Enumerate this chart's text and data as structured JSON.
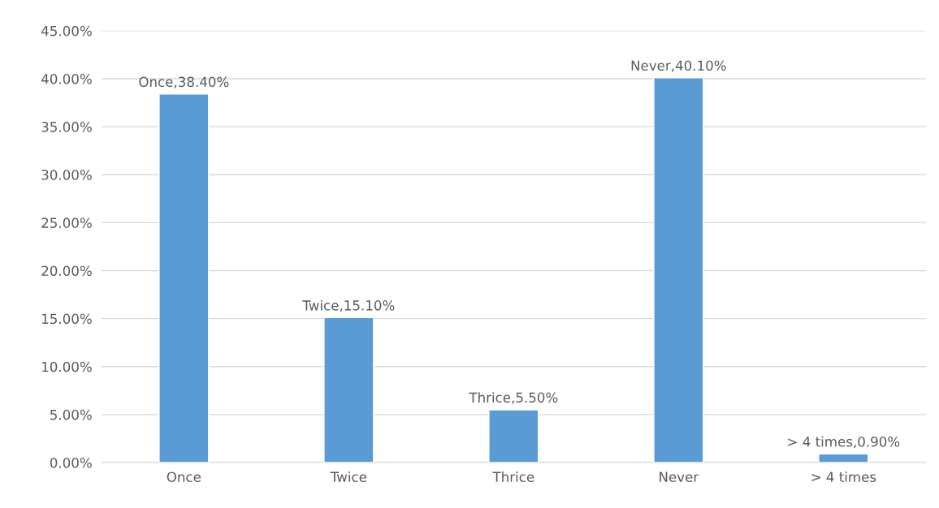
{
  "chart_data": {
    "type": "bar",
    "categories": [
      "Once",
      "Twice",
      "Thrice",
      "Never",
      "> 4 times"
    ],
    "values": [
      38.4,
      15.1,
      5.5,
      40.1,
      0.9
    ],
    "color": "#5b9bd5",
    "value_labels": [
      "Once,38.40%",
      "Twice,15.10%",
      "Thrice,5.50%",
      "Never,40.10%",
      "> 4 times,0.90%"
    ],
    "ylim": [
      0,
      45
    ],
    "yticks": [
      {
        "value": 0,
        "label": "0.00%"
      },
      {
        "value": 5,
        "label": "5.00%"
      },
      {
        "value": 10,
        "label": "10.00%"
      },
      {
        "value": 15,
        "label": "15.00%"
      },
      {
        "value": 20,
        "label": "20.00%"
      },
      {
        "value": 25,
        "label": "25.00%"
      },
      {
        "value": 30,
        "label": "30.00%"
      },
      {
        "value": 35,
        "label": "35.00%"
      },
      {
        "value": 40,
        "label": "40.00%"
      },
      {
        "value": 45,
        "label": "45.00%"
      }
    ],
    "grid": "y",
    "legend": false
  }
}
